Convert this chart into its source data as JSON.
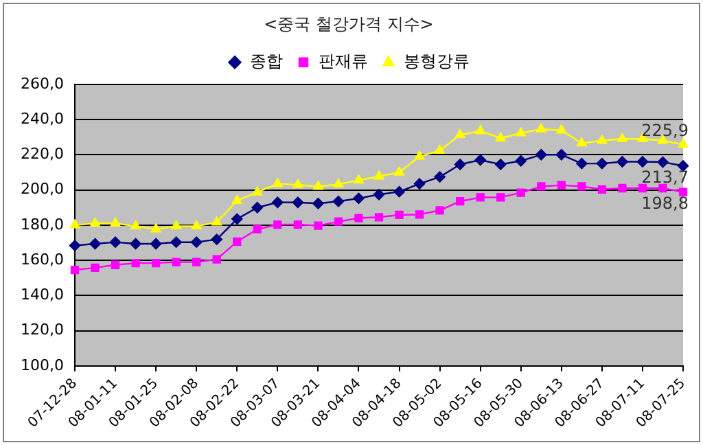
{
  "chart_data": {
    "type": "line",
    "title": "<중국 철강가격 지수>",
    "categories": [
      "07-12-28",
      null,
      "08-01-11",
      null,
      "08-01-25",
      null,
      "08-02-08",
      null,
      "08-02-22",
      null,
      "08-03-07",
      null,
      "08-03-21",
      null,
      "08-04-04",
      null,
      "08-04-18",
      null,
      "08-05-02",
      null,
      "08-05-16",
      null,
      "08-05-30",
      null,
      "08-06-13",
      null,
      "08-06-27",
      null,
      "08-07-11",
      null,
      "08-07-25"
    ],
    "series": [
      {
        "name": "종합",
        "color": "#000080",
        "marker": "diamond",
        "values": [
          168.4,
          169.4,
          170.3,
          169.4,
          169.4,
          170.3,
          170.3,
          171.9,
          183.5,
          190.0,
          192.9,
          192.9,
          192.3,
          193.5,
          195.2,
          197.4,
          199.0,
          203.5,
          207.4,
          214.5,
          217.0,
          214.5,
          216.5,
          220.0,
          220.0,
          215.0,
          215.0,
          216.0,
          216.0,
          215.8,
          213.7
        ]
      },
      {
        "name": "판재류",
        "color": "#ff00ff",
        "marker": "square",
        "values": [
          154.5,
          155.8,
          157.4,
          158.4,
          158.4,
          159.0,
          159.0,
          160.6,
          170.6,
          177.7,
          180.3,
          180.3,
          179.7,
          182.0,
          184.0,
          184.5,
          185.8,
          186.0,
          188.4,
          193.5,
          195.8,
          195.8,
          198.4,
          202.0,
          202.7,
          202.0,
          200.3,
          201.0,
          201.0,
          201.0,
          198.8
        ]
      },
      {
        "name": "봉형강류",
        "color": "#ffff00",
        "marker": "triangle",
        "values": [
          180.0,
          181.0,
          181.0,
          179.4,
          177.7,
          179.4,
          179.4,
          181.6,
          193.9,
          198.7,
          203.5,
          202.9,
          201.9,
          203.2,
          205.5,
          207.7,
          210.0,
          219.0,
          222.3,
          231.3,
          233.5,
          229.4,
          232.3,
          234.5,
          233.9,
          226.5,
          228.0,
          229.0,
          229.0,
          228.0,
          225.9
        ]
      }
    ],
    "ylim": [
      100,
      260
    ],
    "yticks": [
      {
        "value": 100,
        "label": "100,0"
      },
      {
        "value": 120,
        "label": "120,0"
      },
      {
        "value": 140,
        "label": "140,0"
      },
      {
        "value": 160,
        "label": "160,0"
      },
      {
        "value": 180,
        "label": "180,0"
      },
      {
        "value": 200,
        "label": "200,0"
      },
      {
        "value": 220,
        "label": "220,0"
      },
      {
        "value": 240,
        "label": "240,0"
      },
      {
        "value": 260,
        "label": "260,0"
      }
    ],
    "grid": "y",
    "legend": "top",
    "line_style": "solid",
    "annotations": [
      {
        "text": "225,9",
        "x": "08-07-25",
        "y": 225.9
      },
      {
        "text": "213,7",
        "x": "08-07-25",
        "y": 213.7
      },
      {
        "text": "198,8",
        "x": "08-07-25",
        "y": 198.8
      }
    ]
  }
}
